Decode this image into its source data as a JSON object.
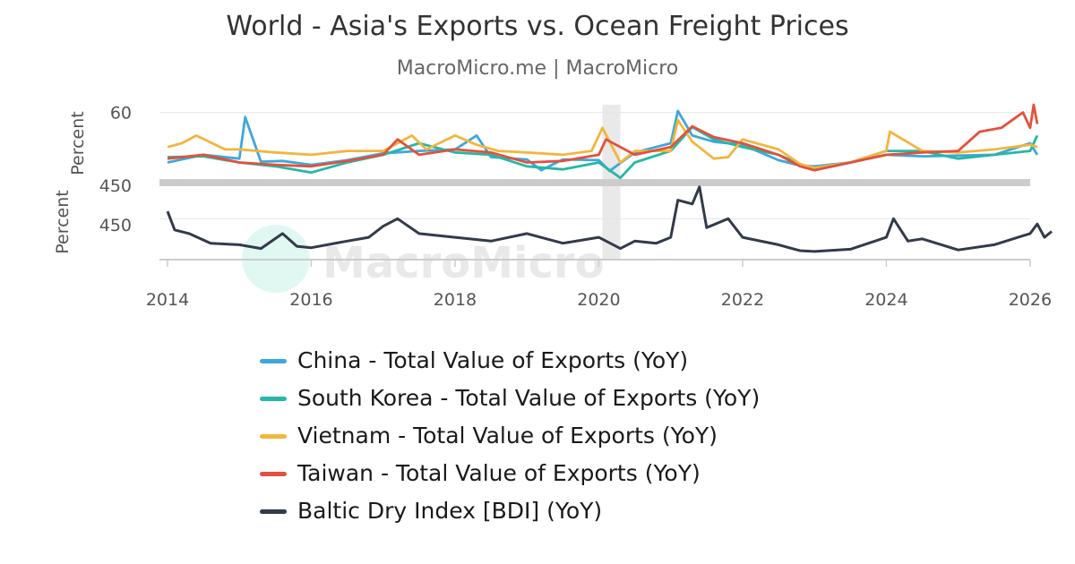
{
  "title": "World - Asia's Exports vs. Ocean Freight Prices",
  "subtitle": "MacroMicro.me | MacroMicro",
  "watermark": "MacroMicro",
  "colors": {
    "china": "#3ea7dc",
    "korea": "#24b8a6",
    "vietnam": "#f2b53e",
    "taiwan": "#e2513c",
    "bdi": "#333a4a",
    "grid": "#e6e6e6",
    "separator": "#cccccc",
    "recession": "#e9e9e9",
    "axis_text": "#555555"
  },
  "chart_data": [
    {
      "type": "line",
      "panel": "top",
      "ylabel": "Percent",
      "ytick_labels": [
        "60"
      ],
      "ylim": [
        -30,
        70
      ],
      "xlim": [
        2014,
        2026.5
      ],
      "shaded_period": [
        2020.05,
        2020.3
      ],
      "series": [
        {
          "name": "China - Total Value of Exports (YoY)",
          "key": "china",
          "x": [
            2014.0,
            2014.5,
            2015.0,
            2015.08,
            2015.3,
            2015.6,
            2016.0,
            2016.5,
            2017.0,
            2017.5,
            2018.0,
            2018.3,
            2018.5,
            2019.0,
            2019.2,
            2019.5,
            2020.0,
            2020.15,
            2020.5,
            2021.0,
            2021.1,
            2021.3,
            2021.6,
            2022.0,
            2022.5,
            2022.8,
            2023.0,
            2023.5,
            2024.0,
            2024.5,
            2025.0,
            2025.5,
            2026.0,
            2026.1
          ],
          "y": [
            -5,
            5,
            0,
            54,
            -4,
            -3,
            -8,
            -2,
            7,
            10,
            12,
            30,
            2,
            -1,
            -15,
            -1,
            -2,
            -16,
            8,
            20,
            62,
            30,
            22,
            18,
            -2,
            -9,
            -10,
            -5,
            5,
            3,
            4,
            5,
            20,
            5
          ]
        },
        {
          "name": "South Korea - Total Value of Exports (YoY)",
          "key": "korea",
          "x": [
            2014.0,
            2014.5,
            2015.0,
            2015.5,
            2016.0,
            2016.5,
            2017.0,
            2017.5,
            2018.0,
            2018.5,
            2019.0,
            2019.5,
            2020.0,
            2020.3,
            2020.5,
            2021.0,
            2021.3,
            2021.6,
            2022.0,
            2022.5,
            2022.8,
            2023.0,
            2023.5,
            2024.0,
            2024.5,
            2025.0,
            2025.5,
            2026.0,
            2026.1
          ],
          "y": [
            2,
            3,
            -5,
            -10,
            -18,
            -5,
            5,
            20,
            8,
            5,
            -10,
            -14,
            -5,
            -25,
            -5,
            10,
            41,
            25,
            15,
            5,
            -7,
            -15,
            -5,
            10,
            10,
            0,
            5,
            10,
            30
          ]
        },
        {
          "name": "Vietnam - Total Value of Exports (YoY)",
          "key": "vietnam",
          "x": [
            2014.0,
            2014.2,
            2014.4,
            2014.8,
            2015.0,
            2015.5,
            2016.0,
            2016.5,
            2017.0,
            2017.4,
            2017.6,
            2018.0,
            2018.3,
            2018.6,
            2019.0,
            2019.5,
            2019.9,
            2020.05,
            2020.3,
            2020.5,
            2021.0,
            2021.1,
            2021.3,
            2021.6,
            2021.8,
            2022.0,
            2022.5,
            2022.8,
            2023.0,
            2023.5,
            2024.0,
            2024.05,
            2024.5,
            2025.0,
            2025.5,
            2026.0,
            2026.1
          ],
          "y": [
            15,
            20,
            30,
            12,
            12,
            8,
            5,
            10,
            10,
            30,
            12,
            30,
            18,
            10,
            8,
            5,
            10,
            40,
            -5,
            10,
            10,
            50,
            22,
            0,
            2,
            25,
            12,
            -7,
            -12,
            -5,
            10,
            35,
            10,
            8,
            12,
            18,
            15
          ]
        },
        {
          "name": "Taiwan - Total Value of Exports (YoY)",
          "key": "taiwan",
          "x": [
            2014.0,
            2014.5,
            2015.0,
            2015.5,
            2016.0,
            2016.5,
            2017.0,
            2017.2,
            2017.5,
            2018.0,
            2018.5,
            2019.0,
            2019.5,
            2020.0,
            2020.1,
            2020.5,
            2021.0,
            2021.3,
            2021.6,
            2022.0,
            2022.5,
            2022.8,
            2023.0,
            2023.5,
            2024.0,
            2024.5,
            2025.0,
            2025.3,
            2025.6,
            2025.9,
            2026.0,
            2026.05,
            2026.1
          ],
          "y": [
            0,
            5,
            -5,
            -8,
            -10,
            -3,
            5,
            25,
            5,
            12,
            8,
            -5,
            -3,
            5,
            25,
            5,
            15,
            42,
            28,
            20,
            5,
            -10,
            -15,
            -5,
            5,
            8,
            10,
            35,
            40,
            60,
            40,
            70,
            45
          ]
        }
      ]
    },
    {
      "type": "line",
      "panel": "bottom",
      "ylabel": "Percent",
      "ytick_labels": [
        "450",
        "450"
      ],
      "ylim": [
        -100,
        900
      ],
      "xlim": [
        2014,
        2026.5
      ],
      "x_ticks": [
        "2014",
        "2016",
        "2018",
        "2020",
        "2022",
        "2024",
        "2026"
      ],
      "series": [
        {
          "name": "Baltic Dry Index [BDI] (YoY)",
          "key": "bdi",
          "x": [
            2014.0,
            2014.1,
            2014.3,
            2014.6,
            2015.0,
            2015.3,
            2015.6,
            2015.8,
            2016.0,
            2016.5,
            2016.8,
            2017.0,
            2017.2,
            2017.5,
            2018.0,
            2018.5,
            2019.0,
            2019.5,
            2020.0,
            2020.3,
            2020.5,
            2020.8,
            2021.0,
            2021.1,
            2021.3,
            2021.4,
            2021.5,
            2021.8,
            2022.0,
            2022.5,
            2022.8,
            2023.0,
            2023.5,
            2024.0,
            2024.1,
            2024.3,
            2024.5,
            2025.0,
            2025.5,
            2026.0,
            2026.1,
            2026.2,
            2026.3
          ],
          "y": [
            550,
            300,
            250,
            120,
            100,
            50,
            250,
            80,
            60,
            150,
            200,
            350,
            450,
            250,
            200,
            150,
            250,
            120,
            200,
            50,
            150,
            120,
            200,
            700,
            650,
            880,
            330,
            450,
            200,
            100,
            20,
            10,
            40,
            200,
            450,
            150,
            180,
            30,
            100,
            250,
            380,
            200,
            280
          ]
        }
      ]
    }
  ],
  "legend": [
    {
      "key": "china",
      "label": "China - Total Value of Exports (YoY)"
    },
    {
      "key": "korea",
      "label": "South Korea - Total Value of Exports (YoY)"
    },
    {
      "key": "vietnam",
      "label": "Vietnam - Total Value of Exports (YoY)"
    },
    {
      "key": "taiwan",
      "label": "Taiwan - Total Value of Exports (YoY)"
    },
    {
      "key": "bdi",
      "label": "Baltic Dry Index [BDI] (YoY)"
    }
  ]
}
